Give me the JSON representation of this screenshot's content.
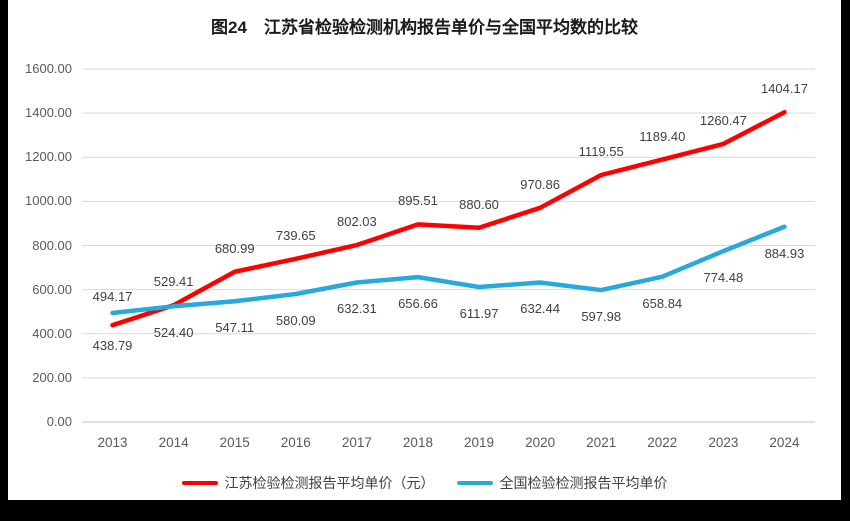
{
  "frame": {
    "background": "#000000",
    "canvas_background": "#ffffff"
  },
  "chart_data": {
    "type": "line",
    "title": "图24　江苏省检验检测机构报告单价与全国平均数的比较",
    "categories": [
      "2013",
      "2014",
      "2015",
      "2016",
      "2017",
      "2018",
      "2019",
      "2020",
      "2021",
      "2022",
      "2023",
      "2024"
    ],
    "series": [
      {
        "name": "江苏检验检测报告平均单价（元）",
        "color": "#fe0000",
        "values": [
          438.79,
          529.41,
          680.99,
          739.65,
          802.03,
          895.51,
          880.6,
          970.86,
          1119.55,
          1189.4,
          1260.47,
          1404.17
        ],
        "data_labels": [
          "438.79",
          "529.41",
          "680.99",
          "739.65",
          "802.03",
          "895.51",
          "880.60",
          "970.86",
          "1119.55",
          "1189.40",
          "1260.47",
          "1404.17"
        ]
      },
      {
        "name": "全国检验检测报告平均单价",
        "color": "#29a8dc",
        "values": [
          494.17,
          524.4,
          547.11,
          580.09,
          632.31,
          656.66,
          611.97,
          632.44,
          597.98,
          658.84,
          774.48,
          884.93
        ],
        "data_labels": [
          "494.17",
          "524.40",
          "547.11",
          "580.09",
          "632.31",
          "656.66",
          "611.97",
          "632.44",
          "597.98",
          "658.84",
          "774.48",
          "884.93"
        ]
      }
    ],
    "y_axis": {
      "min": 0,
      "max": 1600,
      "step": 200,
      "tick_labels": [
        "0.00",
        "200.00",
        "400.00",
        "600.00",
        "800.00",
        "1000.00",
        "1200.00",
        "1400.00",
        "1600.00"
      ]
    },
    "grid": true,
    "legend_position": "bottom",
    "data_labels_visible": true
  },
  "style_colors": {
    "gridline": "#d9d9d9",
    "axis_line": "#bfbfbf",
    "tick_label": "#595959",
    "data_label": "#404040",
    "title": "#1a1a1a",
    "legend_label": "#404040"
  }
}
